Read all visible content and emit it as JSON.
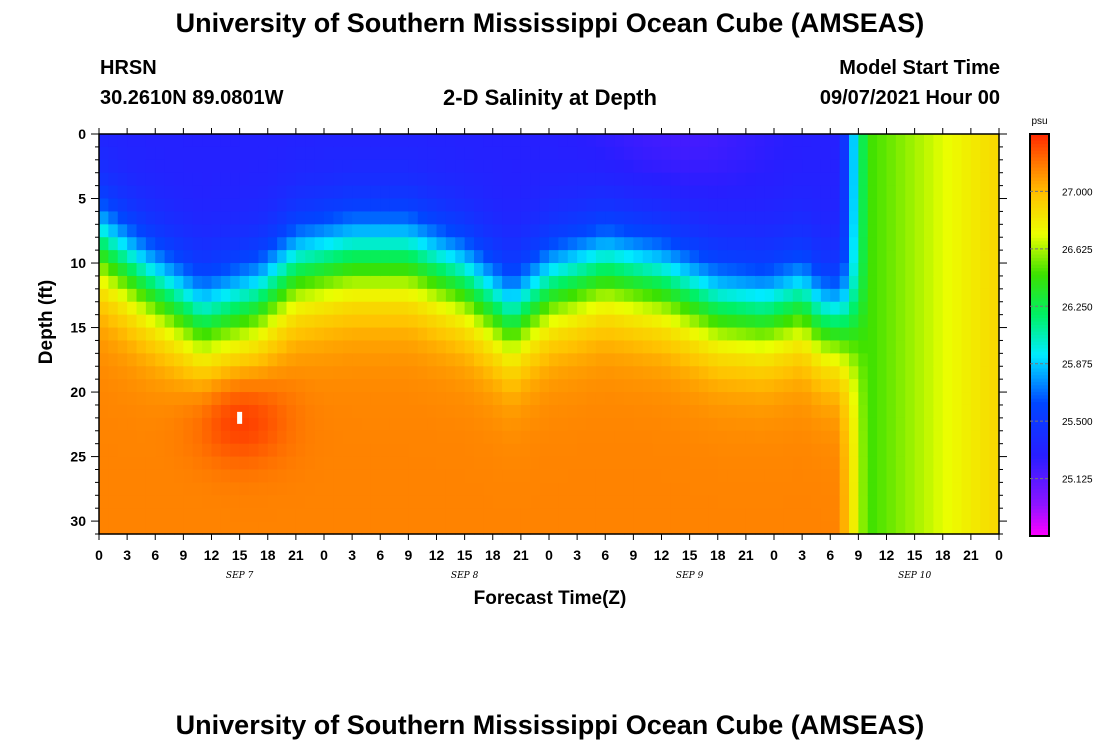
{
  "page": {
    "title_top": "University of Southern Mississippi Ocean Cube (AMSEAS)",
    "title_bottom": "University of Southern Mississippi Ocean Cube (AMSEAS)",
    "station": "HRSN",
    "coords": "30.2610N  89.0801W",
    "chart_title": "2-D Salinity at Depth",
    "model_start_label": "Model Start Time",
    "model_start_value": "09/07/2021 Hour 00"
  },
  "chart_data": {
    "type": "heatmap",
    "title": "2-D Salinity at Depth",
    "xlabel": "Forecast Time(Z)",
    "ylabel": "Depth (ft)",
    "units": "psu",
    "x_range_hours": [
      0,
      96
    ],
    "ylim": [
      0,
      31
    ],
    "y_ticks": [
      0,
      5,
      10,
      15,
      20,
      25,
      30
    ],
    "x_tick_hours": [
      0,
      3,
      6,
      9,
      12,
      15,
      18,
      21,
      24,
      27,
      30,
      33,
      36,
      39,
      42,
      45,
      48,
      51,
      54,
      57,
      60,
      63,
      66,
      69,
      72,
      75,
      78,
      81,
      84,
      87,
      90,
      93,
      96
    ],
    "x_tick_labels": [
      "0",
      "3",
      "6",
      "9",
      "12",
      "15",
      "18",
      "21",
      "0",
      "3",
      "6",
      "9",
      "12",
      "15",
      "18",
      "21",
      "0",
      "3",
      "6",
      "9",
      "12",
      "15",
      "18",
      "21",
      "0",
      "3",
      "6",
      "9",
      "12",
      "15",
      "18",
      "21",
      "0"
    ],
    "date_labels": [
      {
        "hour": 15,
        "text": "SEP 7"
      },
      {
        "hour": 39,
        "text": "SEP 8"
      },
      {
        "hour": 63,
        "text": "SEP 9"
      },
      {
        "hour": 87,
        "text": "SEP 10"
      }
    ],
    "colorbar": {
      "min": 24.75,
      "max": 27.375,
      "ticks": [
        27.0,
        26.625,
        26.25,
        25.875,
        25.5,
        25.125
      ],
      "tick_labels": [
        "27.000",
        "26.625",
        "26.250",
        "25.875",
        "25.500",
        "25.125"
      ],
      "label": "psu"
    },
    "halocline_depth_ft": [
      {
        "hour": 0,
        "depth": 8.5
      },
      {
        "hour": 5,
        "depth": 11.5
      },
      {
        "hour": 11,
        "depth": 14.5
      },
      {
        "hour": 17,
        "depth": 13
      },
      {
        "hour": 21,
        "depth": 10.5
      },
      {
        "hour": 27,
        "depth": 9.5
      },
      {
        "hour": 33,
        "depth": 9.5
      },
      {
        "hour": 39,
        "depth": 11.5
      },
      {
        "hour": 44,
        "depth": 14.5
      },
      {
        "hour": 48,
        "depth": 12
      },
      {
        "hour": 54,
        "depth": 10.5
      },
      {
        "hour": 60,
        "depth": 11.5
      },
      {
        "hour": 66,
        "depth": 13.5
      },
      {
        "hour": 71,
        "depth": 14
      },
      {
        "hour": 75,
        "depth": 13
      },
      {
        "hour": 77,
        "depth": 14.5
      },
      {
        "hour": 80,
        "depth": 15
      }
    ],
    "mixed_transition_hour": 80,
    "surface_salinity_psu": 25.3,
    "bottom_salinity_psu": 27.15,
    "late_mixed_salinity_psu": [
      26.45,
      26.9
    ],
    "max_marker": {
      "hour": 15,
      "depth": 22
    }
  }
}
